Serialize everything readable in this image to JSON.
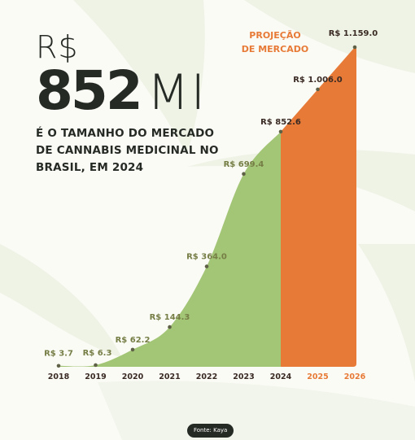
{
  "headline": {
    "currency": "R$",
    "number": "852",
    "unit": "MI",
    "subtitle": "É O TAMANHO DO MERCADO DE CANNABIS MEDICINAL NO BRASIL, EM 2024"
  },
  "source": "Fonte: Kaya",
  "colors": {
    "green": "#a3c576",
    "orange": "#e77a36",
    "green_label": "#767e46",
    "dark_label": "#3a2a24",
    "text": "#262a25",
    "background": "#fbfbf6",
    "leaf": "#eaf0df"
  },
  "chart_data": {
    "type": "area",
    "x": [
      "2018",
      "2019",
      "2020",
      "2021",
      "2022",
      "2023",
      "2024",
      "2025",
      "2026"
    ],
    "values": [
      3.7,
      6.3,
      62.2,
      144.3,
      364.0,
      699.4,
      852.6,
      1006.0,
      1159.0
    ],
    "labels": [
      "R$ 3.7",
      "R$ 6.3",
      "R$ 62.2",
      "R$ 144.3",
      "R$ 364.0",
      "R$ 699.4",
      "R$ 852.6",
      "R$ 1.006.0",
      "R$ 1.159.0"
    ],
    "ylim": [
      0,
      1159
    ],
    "annotation": [
      "PROJEÇÃO",
      "DE MERCADO"
    ],
    "projection_from": "2024",
    "grid": false,
    "xlabel": "",
    "ylabel": ""
  }
}
